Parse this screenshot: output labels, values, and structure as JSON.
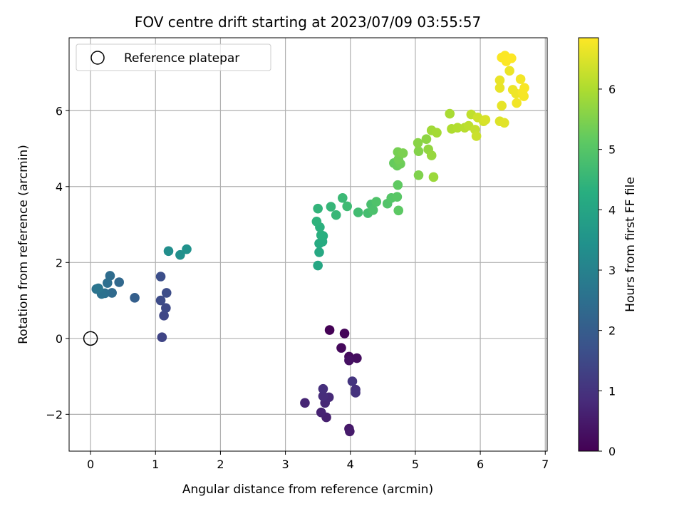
{
  "chart_data": {
    "type": "scatter",
    "title": "FOV centre drift starting at 2023/07/09 03:55:57",
    "xlabel": "Angular distance from reference (arcmin)",
    "ylabel": "Rotation from reference (arcmin)",
    "xlim": [
      -0.33,
      7.03
    ],
    "ylim": [
      -2.97,
      7.92
    ],
    "x_ticks": [
      0,
      1,
      2,
      3,
      4,
      5,
      6,
      7
    ],
    "y_ticks": [
      -2,
      0,
      2,
      4,
      6
    ],
    "y_tick_labels": [
      "−2",
      "0",
      "2",
      "4",
      "6"
    ],
    "grid": true,
    "legend": {
      "placement": "top-left",
      "entries": [
        {
          "label": "Reference platepar",
          "marker": "open-circle"
        }
      ]
    },
    "reference_point": {
      "x": 0,
      "y": 0
    },
    "colorbar": {
      "label": "Hours from first FF file",
      "colormap": "viridis",
      "range": [
        0,
        6.85
      ],
      "ticks": [
        0,
        1,
        2,
        3,
        4,
        5,
        6
      ]
    },
    "points": [
      {
        "x": 3.68,
        "y": 0.22,
        "t": 0.02
      },
      {
        "x": 3.91,
        "y": 0.13,
        "t": 0.08
      },
      {
        "x": 3.86,
        "y": -0.25,
        "t": 0.15
      },
      {
        "x": 3.98,
        "y": -0.48,
        "t": 0.2
      },
      {
        "x": 4.1,
        "y": -0.52,
        "t": 0.25
      },
      {
        "x": 3.98,
        "y": -0.58,
        "t": 0.3
      },
      {
        "x": 3.98,
        "y": -2.38,
        "t": 0.45
      },
      {
        "x": 3.99,
        "y": -2.45,
        "t": 0.5
      },
      {
        "x": 3.63,
        "y": -2.08,
        "t": 0.6
      },
      {
        "x": 3.55,
        "y": -1.95,
        "t": 0.65
      },
      {
        "x": 3.3,
        "y": -1.7,
        "t": 0.7
      },
      {
        "x": 3.61,
        "y": -1.7,
        "t": 0.75
      },
      {
        "x": 3.67,
        "y": -1.55,
        "t": 0.8
      },
      {
        "x": 3.58,
        "y": -1.52,
        "t": 0.85
      },
      {
        "x": 3.58,
        "y": -1.33,
        "t": 0.9
      },
      {
        "x": 4.08,
        "y": -1.35,
        "t": 0.95
      },
      {
        "x": 4.08,
        "y": -1.43,
        "t": 1.0
      },
      {
        "x": 4.03,
        "y": -1.13,
        "t": 1.05
      },
      {
        "x": 1.1,
        "y": 0.03,
        "t": 1.4
      },
      {
        "x": 1.13,
        "y": 0.6,
        "t": 1.45
      },
      {
        "x": 1.16,
        "y": 0.8,
        "t": 1.5
      },
      {
        "x": 1.08,
        "y": 1.0,
        "t": 1.55
      },
      {
        "x": 1.17,
        "y": 1.2,
        "t": 1.6
      },
      {
        "x": 1.08,
        "y": 1.63,
        "t": 1.65
      },
      {
        "x": 0.68,
        "y": 1.07,
        "t": 2.05
      },
      {
        "x": 0.44,
        "y": 1.48,
        "t": 2.3
      },
      {
        "x": 0.33,
        "y": 1.2,
        "t": 2.35
      },
      {
        "x": 0.3,
        "y": 1.65,
        "t": 2.4
      },
      {
        "x": 0.26,
        "y": 1.46,
        "t": 2.45
      },
      {
        "x": 0.22,
        "y": 1.19,
        "t": 2.5
      },
      {
        "x": 0.17,
        "y": 1.17,
        "t": 2.55
      },
      {
        "x": 0.09,
        "y": 1.3,
        "t": 2.6
      },
      {
        "x": 0.12,
        "y": 1.32,
        "t": 2.65
      },
      {
        "x": 1.2,
        "y": 2.3,
        "t": 3.35
      },
      {
        "x": 1.38,
        "y": 2.2,
        "t": 3.4
      },
      {
        "x": 1.48,
        "y": 2.35,
        "t": 3.45
      },
      {
        "x": 3.5,
        "y": 1.92,
        "t": 4.05
      },
      {
        "x": 3.52,
        "y": 2.27,
        "t": 4.1
      },
      {
        "x": 3.52,
        "y": 2.5,
        "t": 4.15
      },
      {
        "x": 3.57,
        "y": 2.55,
        "t": 4.2
      },
      {
        "x": 3.58,
        "y": 2.7,
        "t": 4.25
      },
      {
        "x": 3.55,
        "y": 2.72,
        "t": 4.3
      },
      {
        "x": 3.53,
        "y": 2.93,
        "t": 4.35
      },
      {
        "x": 3.48,
        "y": 3.08,
        "t": 4.4
      },
      {
        "x": 3.5,
        "y": 3.42,
        "t": 4.45
      },
      {
        "x": 3.7,
        "y": 3.47,
        "t": 4.5
      },
      {
        "x": 3.78,
        "y": 3.25,
        "t": 4.55
      },
      {
        "x": 3.88,
        "y": 3.7,
        "t": 4.6
      },
      {
        "x": 3.95,
        "y": 3.48,
        "t": 4.65
      },
      {
        "x": 4.12,
        "y": 3.32,
        "t": 4.7
      },
      {
        "x": 4.27,
        "y": 3.3,
        "t": 4.75
      },
      {
        "x": 4.32,
        "y": 3.53,
        "t": 4.8
      },
      {
        "x": 4.35,
        "y": 3.38,
        "t": 4.85
      },
      {
        "x": 4.4,
        "y": 3.6,
        "t": 4.9
      },
      {
        "x": 4.57,
        "y": 3.55,
        "t": 4.95
      },
      {
        "x": 4.63,
        "y": 3.7,
        "t": 5.0
      },
      {
        "x": 4.72,
        "y": 3.73,
        "t": 5.05
      },
      {
        "x": 4.74,
        "y": 3.37,
        "t": 5.1
      },
      {
        "x": 4.73,
        "y": 4.04,
        "t": 5.15
      },
      {
        "x": 4.67,
        "y": 4.62,
        "t": 5.2
      },
      {
        "x": 4.72,
        "y": 4.55,
        "t": 5.25
      },
      {
        "x": 4.77,
        "y": 4.6,
        "t": 5.3
      },
      {
        "x": 4.74,
        "y": 4.72,
        "t": 5.35
      },
      {
        "x": 4.73,
        "y": 4.91,
        "t": 5.4
      },
      {
        "x": 4.81,
        "y": 4.88,
        "t": 5.45
      },
      {
        "x": 5.05,
        "y": 4.3,
        "t": 5.5
      },
      {
        "x": 5.05,
        "y": 4.93,
        "t": 5.55
      },
      {
        "x": 5.04,
        "y": 5.15,
        "t": 5.6
      },
      {
        "x": 5.17,
        "y": 5.25,
        "t": 5.65
      },
      {
        "x": 5.2,
        "y": 4.98,
        "t": 5.7
      },
      {
        "x": 5.25,
        "y": 4.82,
        "t": 5.75
      },
      {
        "x": 5.28,
        "y": 4.25,
        "t": 5.8
      },
      {
        "x": 5.25,
        "y": 5.48,
        "t": 5.85
      },
      {
        "x": 5.33,
        "y": 5.42,
        "t": 5.9
      },
      {
        "x": 5.53,
        "y": 5.92,
        "t": 5.95
      },
      {
        "x": 5.56,
        "y": 5.52,
        "t": 6.0
      },
      {
        "x": 5.65,
        "y": 5.55,
        "t": 6.05
      },
      {
        "x": 5.76,
        "y": 5.55,
        "t": 6.1
      },
      {
        "x": 5.82,
        "y": 5.6,
        "t": 6.15
      },
      {
        "x": 5.86,
        "y": 5.9,
        "t": 6.2
      },
      {
        "x": 5.92,
        "y": 5.5,
        "t": 6.25
      },
      {
        "x": 5.94,
        "y": 5.33,
        "t": 6.3
      },
      {
        "x": 5.96,
        "y": 5.82,
        "t": 6.35
      },
      {
        "x": 6.05,
        "y": 5.72,
        "t": 6.4
      },
      {
        "x": 6.08,
        "y": 5.76,
        "t": 6.45
      },
      {
        "x": 6.3,
        "y": 5.72,
        "t": 6.5
      },
      {
        "x": 6.37,
        "y": 5.68,
        "t": 6.55
      },
      {
        "x": 6.33,
        "y": 6.13,
        "t": 6.6
      },
      {
        "x": 6.3,
        "y": 6.6,
        "t": 6.62
      },
      {
        "x": 6.3,
        "y": 6.8,
        "t": 6.64
      },
      {
        "x": 6.45,
        "y": 7.05,
        "t": 6.66
      },
      {
        "x": 6.5,
        "y": 6.55,
        "t": 6.68
      },
      {
        "x": 6.55,
        "y": 6.45,
        "t": 6.7
      },
      {
        "x": 6.56,
        "y": 6.2,
        "t": 6.72
      },
      {
        "x": 6.62,
        "y": 6.83,
        "t": 6.74
      },
      {
        "x": 6.67,
        "y": 6.38,
        "t": 6.76
      },
      {
        "x": 6.65,
        "y": 6.48,
        "t": 6.78
      },
      {
        "x": 6.68,
        "y": 6.6,
        "t": 6.8
      },
      {
        "x": 6.33,
        "y": 7.4,
        "t": 6.82
      },
      {
        "x": 6.38,
        "y": 7.45,
        "t": 6.83
      },
      {
        "x": 6.4,
        "y": 7.3,
        "t": 6.84
      },
      {
        "x": 6.48,
        "y": 7.38,
        "t": 6.85
      }
    ]
  }
}
